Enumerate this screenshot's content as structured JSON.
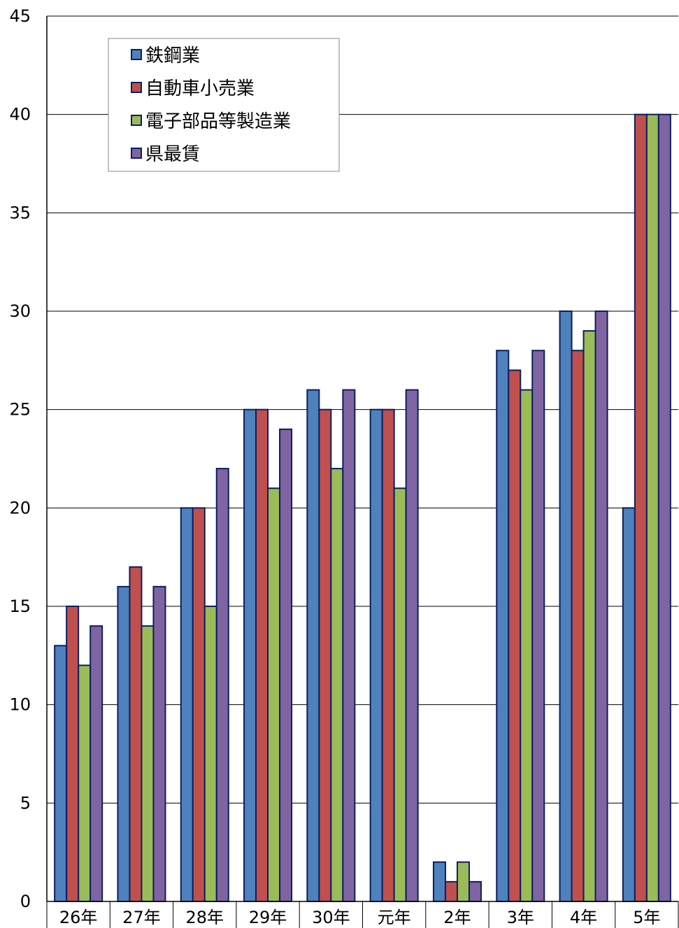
{
  "chart_data": {
    "type": "bar",
    "categories": [
      "26年",
      "27年",
      "28年",
      "29年",
      "30年",
      "元年",
      "2年",
      "3年",
      "4年",
      "5年"
    ],
    "series": [
      {
        "name": "鉄鋼業",
        "color": "#4f81bd",
        "values": [
          13,
          16,
          20,
          25,
          26,
          25,
          2,
          28,
          30,
          20
        ]
      },
      {
        "name": "自動車小売業",
        "color": "#c0504d",
        "values": [
          15,
          17,
          20,
          25,
          25,
          25,
          1,
          27,
          28,
          40
        ]
      },
      {
        "name": "電子部品等製造業",
        "color": "#9bbb59",
        "values": [
          12,
          14,
          15,
          21,
          22,
          21,
          2,
          26,
          29,
          40
        ]
      },
      {
        "name": "県最賃",
        "color": "#8064a2",
        "values": [
          14,
          16,
          22,
          24,
          26,
          26,
          1,
          28,
          30,
          40
        ]
      }
    ],
    "ylim": [
      0,
      45
    ],
    "yticks": [
      0,
      5,
      10,
      15,
      20,
      25,
      30,
      35,
      40,
      45
    ],
    "grid": true,
    "legend_position": "top-left",
    "title": "",
    "xlabel": "",
    "ylabel": ""
  }
}
